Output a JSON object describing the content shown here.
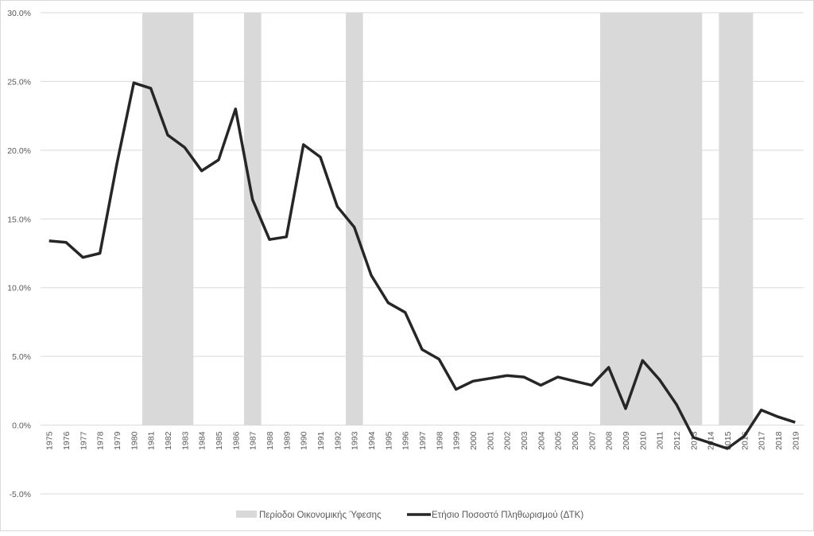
{
  "chart_data": {
    "type": "line",
    "title": "",
    "xlabel": "",
    "ylabel": "",
    "ylim": [
      -5,
      30
    ],
    "yticks": [
      "-5.0%",
      "0.0%",
      "5.0%",
      "10.0%",
      "15.0%",
      "20.0%",
      "25.0%",
      "30.0%"
    ],
    "ytick_values": [
      -5,
      0,
      5,
      10,
      15,
      20,
      25,
      30
    ],
    "grid": true,
    "legend_position": "bottom",
    "categories": [
      "1975",
      "1976",
      "1977",
      "1978",
      "1979",
      "1980",
      "1981",
      "1982",
      "1983",
      "1984",
      "1985",
      "1986",
      "1987",
      "1988",
      "1989",
      "1990",
      "1991",
      "1992",
      "1993",
      "1994",
      "1995",
      "1996",
      "1997",
      "1998",
      "1999",
      "2000",
      "2001",
      "2002",
      "2003",
      "2004",
      "2005",
      "2006",
      "2007",
      "2008",
      "2009",
      "2010",
      "2011",
      "2012",
      "2013",
      "2014",
      "2015",
      "2016",
      "2017",
      "2018",
      "2019"
    ],
    "recession_series": {
      "name": "Περίοδοι Οικονομικής Ύφεσης",
      "color": "#d9d9d9",
      "years": [
        "1981",
        "1982",
        "1983",
        "1987",
        "1993",
        "2008",
        "2009",
        "2010",
        "2011",
        "2012",
        "2013",
        "2015",
        "2016"
      ]
    },
    "series": [
      {
        "name": "Ετήσιο Ποσοστό Πληθωρισμού (ΔΤΚ)",
        "color": "#262626",
        "values": [
          13.4,
          13.3,
          12.2,
          12.5,
          19.0,
          24.9,
          24.5,
          21.1,
          20.2,
          18.5,
          19.3,
          23.0,
          16.4,
          13.5,
          13.7,
          20.4,
          19.5,
          15.9,
          14.4,
          10.9,
          8.9,
          8.2,
          5.5,
          4.8,
          2.6,
          3.2,
          3.4,
          3.6,
          3.5,
          2.9,
          3.5,
          3.2,
          2.9,
          4.2,
          1.2,
          4.7,
          3.3,
          1.5,
          -0.9,
          -1.3,
          -1.7,
          -0.8,
          1.1,
          0.6,
          0.2
        ]
      }
    ]
  }
}
